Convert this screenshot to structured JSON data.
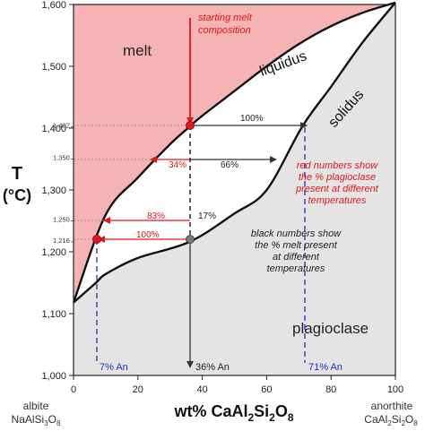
{
  "y_axis": {
    "title_symbol": "T",
    "title_unit": "(°C)",
    "ticks": [
      {
        "value": 1000,
        "label": "1,000"
      },
      {
        "value": 1100,
        "label": "1,100"
      },
      {
        "value": 1200,
        "label": "1,200"
      },
      {
        "value": 1300,
        "label": "1,300"
      },
      {
        "value": 1400,
        "label": "1,400"
      },
      {
        "value": 1500,
        "label": "1,500"
      },
      {
        "value": 1600,
        "label": "1,600"
      }
    ],
    "small_ticks": [
      {
        "value": 1402,
        "label": "1,402"
      },
      {
        "value": 1350,
        "label": "1,350"
      },
      {
        "value": 1250,
        "label": "1,250"
      },
      {
        "value": 1216,
        "label": "1,216"
      }
    ]
  },
  "x_axis": {
    "ticks": [
      {
        "value": 0,
        "label": "0"
      },
      {
        "value": 20,
        "label": "20"
      },
      {
        "value": 40,
        "label": "40"
      },
      {
        "value": 60,
        "label": "60"
      },
      {
        "value": 80,
        "label": "80"
      },
      {
        "value": 100,
        "label": "100"
      }
    ],
    "title_main": "wt% CaAl",
    "title_sub1": "2",
    "title_mid": "Si",
    "title_sub2": "2",
    "title_o": "O",
    "title_sub3": "8"
  },
  "endmembers": {
    "left_name": "albite",
    "left_formula": {
      "a": "NaAlSi",
      "s1": "3",
      "b": "O",
      "s2": "8"
    },
    "right_name": "anorthite",
    "right_formula": {
      "a": "CaAl",
      "s1": "2",
      "b": "Si",
      "s2": "2",
      "c": "O",
      "s3": "8"
    }
  },
  "fields": {
    "melt": "melt",
    "liquidus": "liquidus",
    "solidus": "solidus",
    "plagioclase": "plagioclase"
  },
  "annotations": {
    "start_line1": "starting melt",
    "start_line2": "composition",
    "red_note": [
      "red numbers show",
      "the % plagioclase",
      "present at different",
      "temperatures"
    ],
    "black_note": [
      "black numbers show",
      "the % melt present",
      "at different",
      "temperatures"
    ],
    "pct_100_black": "100%",
    "pct_34_red": "34%",
    "pct_66_black": "66%",
    "pct_83_red": "83%",
    "pct_17_black": "17%",
    "pct_100_red": "100%",
    "an_7": "7% An",
    "an_36": "36% An",
    "an_71": "71% An"
  },
  "colors": {
    "melt_fill": "#f6b3b3",
    "solid_fill": "#e4e4e4",
    "red": "#e3161c",
    "blue": "#1e2fbf",
    "dark": "#333333"
  },
  "chart_data": {
    "type": "phase-diagram",
    "x_range": [
      0,
      100
    ],
    "y_range": [
      1000,
      1600
    ],
    "liquidus": [
      [
        0,
        1118
      ],
      [
        10,
        1260
      ],
      [
        20,
        1320
      ],
      [
        30,
        1374
      ],
      [
        36,
        1402
      ],
      [
        40,
        1420
      ],
      [
        50,
        1460
      ],
      [
        60,
        1500
      ],
      [
        70,
        1536
      ],
      [
        80,
        1565
      ],
      [
        90,
        1587
      ],
      [
        100,
        1603
      ]
    ],
    "solidus": [
      [
        0,
        1118
      ],
      [
        7,
        1150
      ],
      [
        10,
        1164
      ],
      [
        20,
        1190
      ],
      [
        36,
        1216
      ],
      [
        50,
        1262
      ],
      [
        60,
        1300
      ],
      [
        71,
        1402
      ],
      [
        80,
        1467
      ],
      [
        90,
        1540
      ],
      [
        100,
        1603
      ]
    ],
    "tie_lines": [
      {
        "T": 1402,
        "x_from": 36,
        "x_to": 71
      },
      {
        "T": 1350,
        "x_from": 24,
        "x_to": 62
      },
      {
        "T": 1250,
        "x_from": 10,
        "x_to": 36
      },
      {
        "T": 1216,
        "x_from": 7,
        "x_to": 36
      }
    ],
    "points": [
      {
        "x": 36,
        "T": 1402,
        "kind": "starting melt"
      },
      {
        "x": 7,
        "T": 1216,
        "kind": "last melt"
      },
      {
        "x": 36,
        "T": 1216,
        "kind": "fully solid"
      }
    ],
    "composition_lines": [
      7,
      36,
      71
    ]
  }
}
